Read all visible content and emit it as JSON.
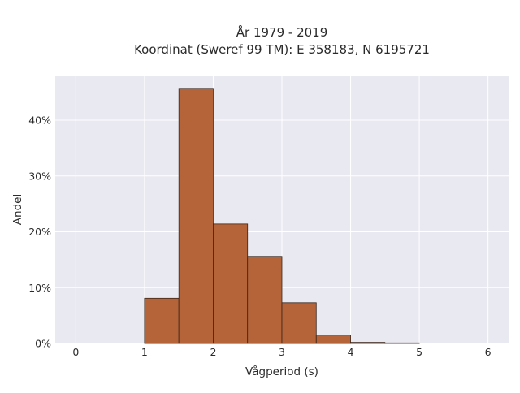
{
  "chart_data": {
    "type": "bar",
    "title": "År 1979 - 2019",
    "subtitle": "Koordinat (Sweref 99 TM): E 358183, N 6195721",
    "xlabel": "Vågperiod (s)",
    "ylabel": "Andel",
    "xlim": [
      -0.3,
      6.3
    ],
    "ylim": [
      0,
      0.48
    ],
    "xticks": [
      0,
      1,
      2,
      3,
      4,
      5,
      6
    ],
    "xtick_labels": [
      "0",
      "1",
      "2",
      "3",
      "4",
      "5",
      "6"
    ],
    "yticks": [
      0,
      0.1,
      0.2,
      0.3,
      0.4
    ],
    "ytick_labels": [
      "0%",
      "10%",
      "20%",
      "30%",
      "40%"
    ],
    "bins": [
      {
        "x0": 1.0,
        "x1": 1.5,
        "value": 0.081
      },
      {
        "x0": 1.5,
        "x1": 2.0,
        "value": 0.457
      },
      {
        "x0": 2.0,
        "x1": 2.5,
        "value": 0.214
      },
      {
        "x0": 2.5,
        "x1": 3.0,
        "value": 0.156
      },
      {
        "x0": 3.0,
        "x1": 3.5,
        "value": 0.073
      },
      {
        "x0": 3.5,
        "x1": 4.0,
        "value": 0.015
      },
      {
        "x0": 4.0,
        "x1": 4.5,
        "value": 0.002
      },
      {
        "x0": 4.5,
        "x1": 5.0,
        "value": 0.001
      }
    ],
    "grid": true,
    "colors": {
      "bar_fill": "#b5643a",
      "bar_edge": "#3a2418",
      "plot_background": "#e9e9f1",
      "grid": "#ffffff"
    }
  }
}
